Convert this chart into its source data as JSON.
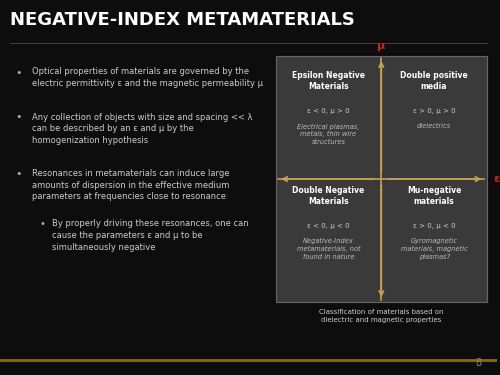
{
  "title": "NEGATIVE-INDEX METAMATERIALS",
  "title_color": "#ffffff",
  "title_fontsize": 13,
  "slide_bg": "#0d0d0d",
  "bullets": [
    "Optical properties of materials are governed by the\nelectric permittivity ε and the magnetic permeability μ",
    "Any collection of objects with size and spacing << λ\ncan be described by an ε and μ by the\nhomogenization hypothesis",
    "Resonances in metamaterials can induce large\namounts of dispersion in the effective medium\nparameters at frequencies close to resonance"
  ],
  "sub_bullet": "By properly driving these resonances, one can\ncause the parameters ε and μ to be\nsimultaneously negative",
  "quadrant_bg": "#3a3a3a",
  "arrow_color": "#c8a050",
  "axis_label_color": "#cc2222",
  "quadrant_title_color": "#ffffff",
  "quadrant_text_color": "#cccccc",
  "italic_text_color": "#bbbbbb",
  "caption_color": "#cccccc",
  "quadrants": {
    "top_left": {
      "title": "Epsilon Negative\nMaterials",
      "condition": "ε < 0, μ > 0",
      "italic": "Electrical plasmas,\nmetals, thin wire\nstructures"
    },
    "top_right": {
      "title": "Double positive\nmedia",
      "condition": "ε > 0, μ > 0",
      "italic": "dielectrics"
    },
    "bottom_left": {
      "title": "Double Negative\nMaterials",
      "condition": "ε < 0, μ < 0",
      "italic": "Negative-Index\nmetamaterials, not\nfound in nature"
    },
    "bottom_right": {
      "title": "Mu-negative\nmaterials",
      "condition": "ε > 0, μ < 0",
      "italic": "Gyromagnetic\nmaterials, magnetic\nplasmas?"
    }
  },
  "caption": "Classification of materials based on\ndielectric and magnetic properties",
  "page_num": "8",
  "axis_top_label": "μ",
  "axis_right_label": "ε"
}
